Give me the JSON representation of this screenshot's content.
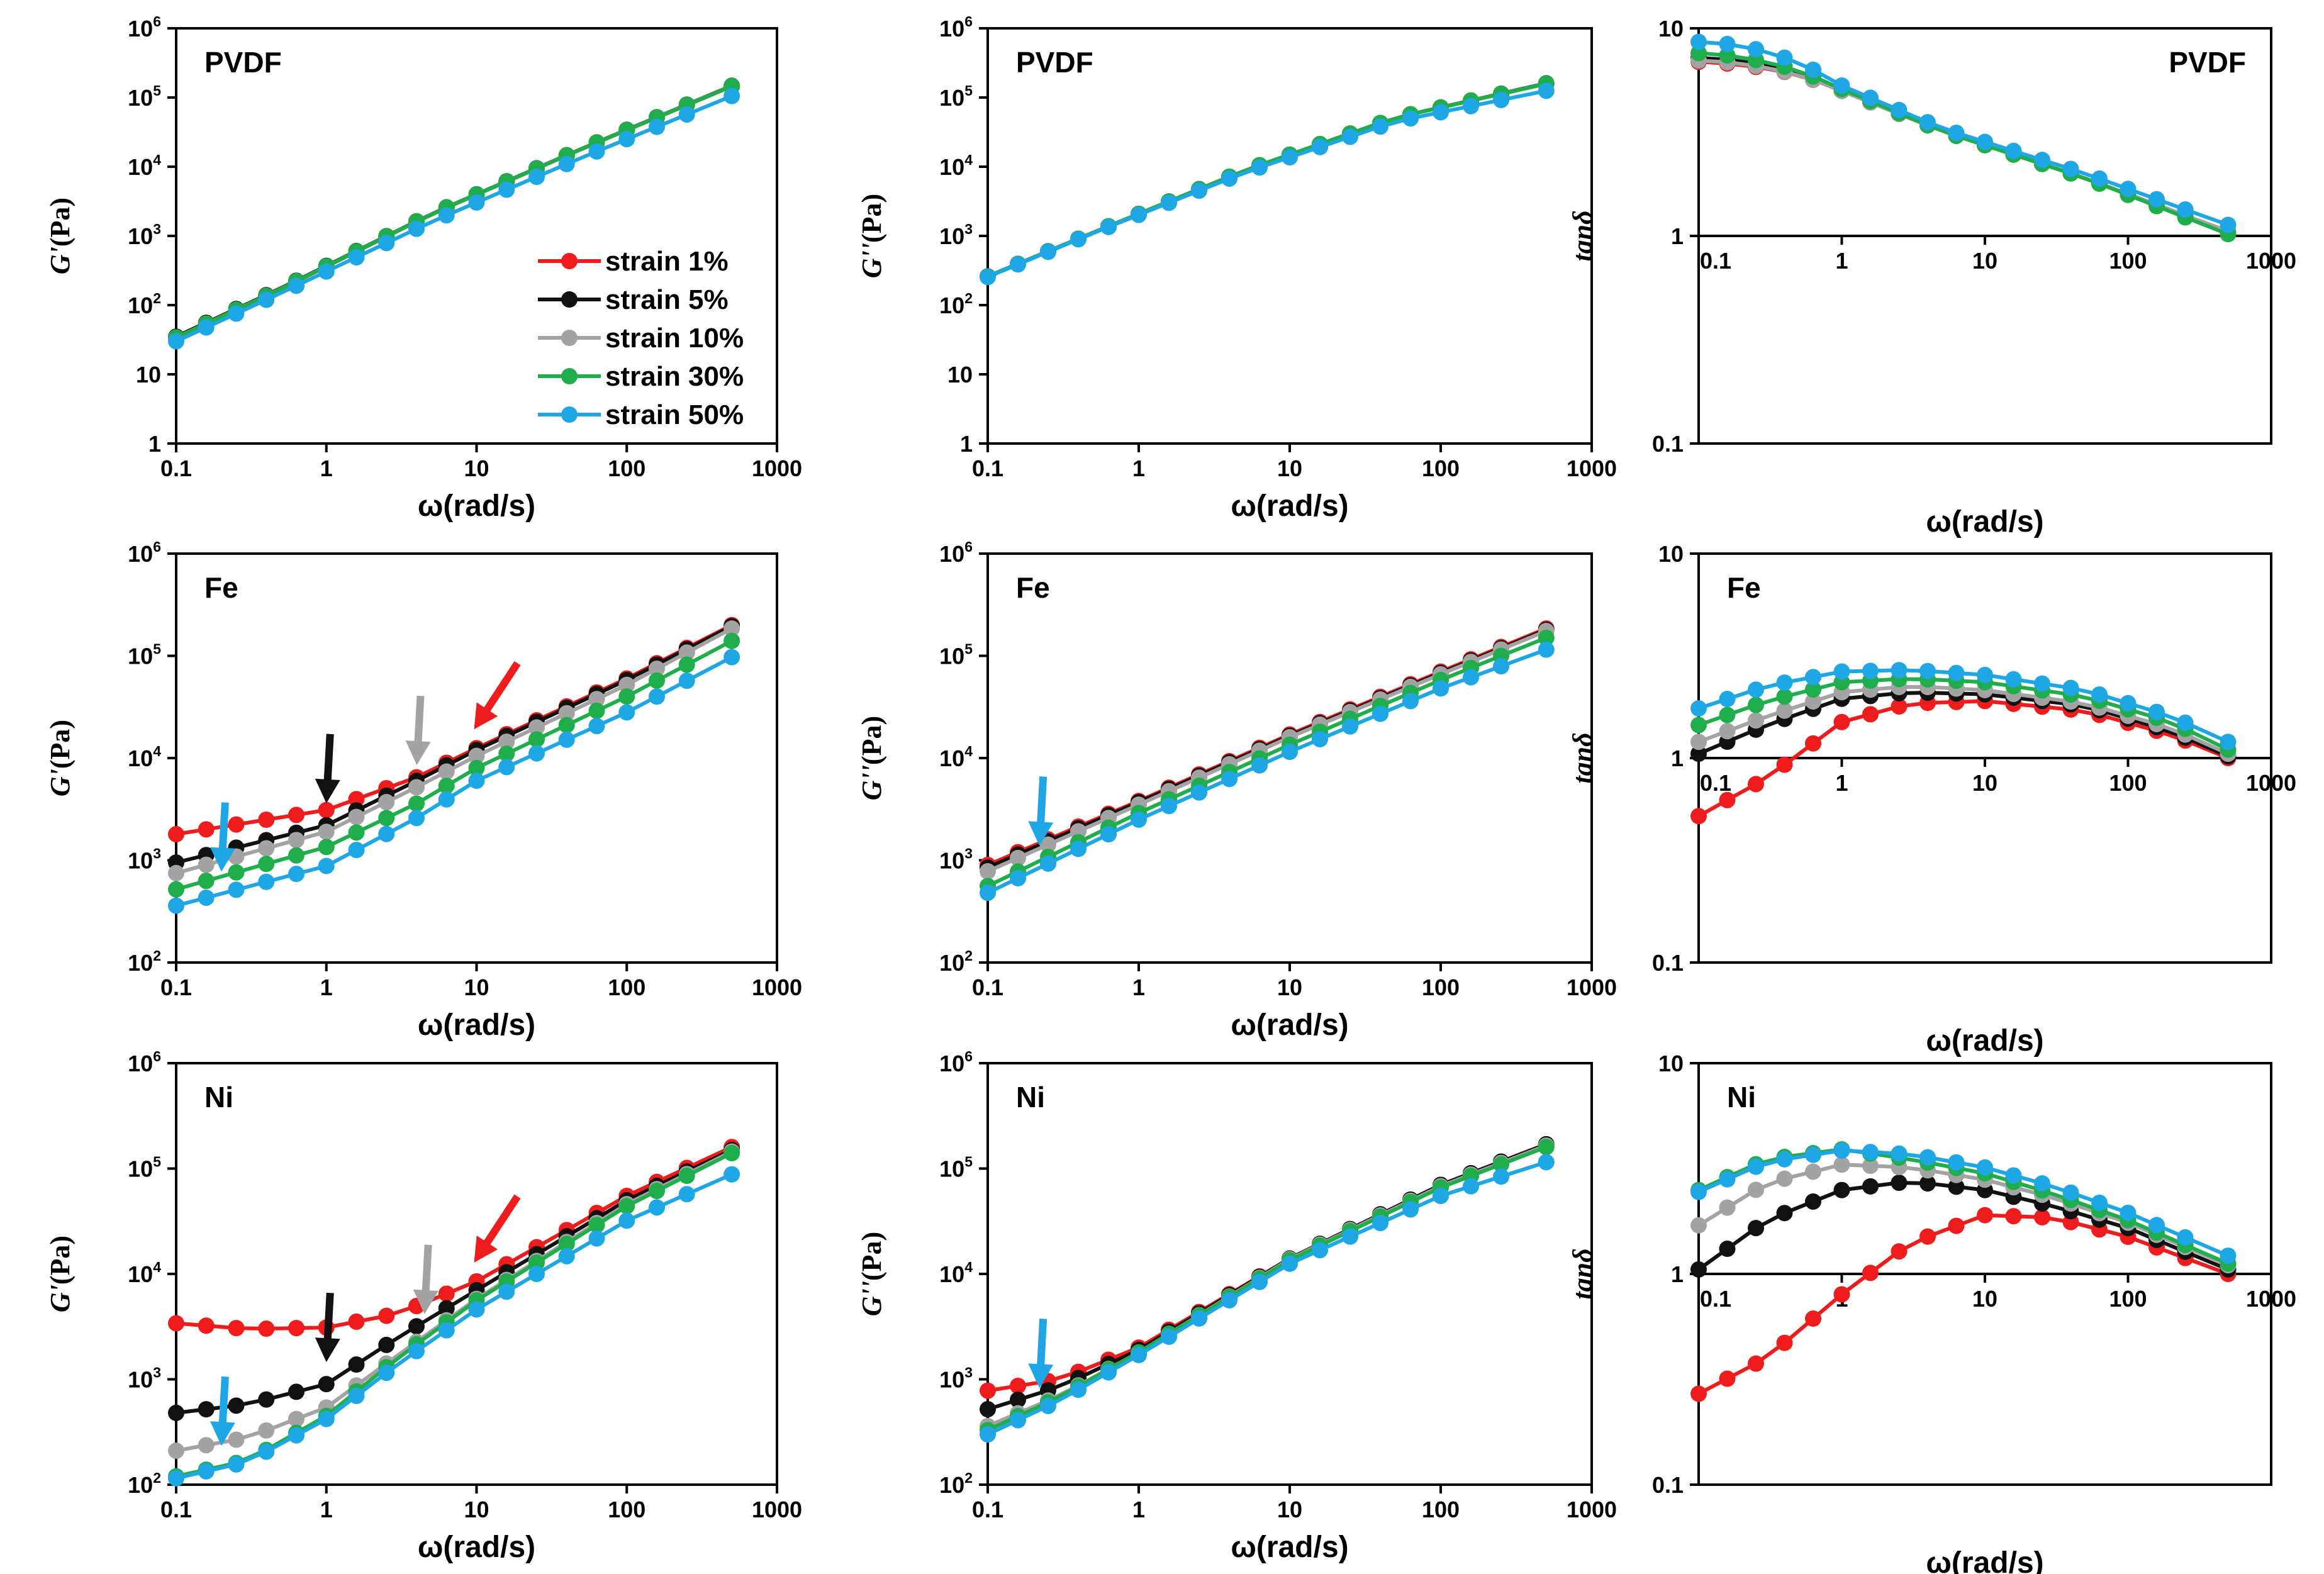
{
  "figure": {
    "series_colors": {
      "strain 1%": "#ee1c1c",
      "strain 5%": "#111111",
      "strain 10%": "#a3a3a3",
      "strain 30%": "#1fae4b",
      "strain 50%": "#1ea7e4"
    },
    "legend": [
      "strain 1%",
      "strain 5%",
      "strain 10%",
      "strain 30%",
      "strain 50%"
    ]
  },
  "chart_data": [
    {
      "id": "pvdf-gp",
      "type": "line",
      "title": "PVDF",
      "xlabel": "ω(rad/s)",
      "ylabel": {
        "main": "G'",
        "unit": "(Pa)"
      },
      "x_scale": "log",
      "y_scale": "log",
      "xlim": [
        0.1,
        1000
      ],
      "ylim": [
        1,
        1000000
      ],
      "xticks": [
        "0.1",
        "1",
        "10",
        "100",
        "1000"
      ],
      "yticks": [
        {
          "v": 1,
          "t": "1"
        },
        {
          "v": 10,
          "t": "10"
        },
        {
          "v": 100,
          "b": "10",
          "e": "2"
        },
        {
          "v": 1000,
          "b": "10",
          "e": "3"
        },
        {
          "v": 10000,
          "b": "10",
          "e": "4"
        },
        {
          "v": 100000,
          "b": "10",
          "e": "5"
        },
        {
          "v": 1000000,
          "b": "10",
          "e": "6"
        }
      ],
      "x": [
        0.1,
        0.5,
        5,
        50,
        500
      ],
      "series": [
        {
          "name": "strain 1%",
          "values": [
            33,
            170,
            2050,
            18000,
            145000
          ]
        },
        {
          "name": "strain 5%",
          "values": [
            35,
            175,
            2080,
            18200,
            148000
          ]
        },
        {
          "name": "strain 10%",
          "values": [
            34,
            172,
            2060,
            18100,
            147000
          ]
        },
        {
          "name": "strain 30%",
          "values": [
            34,
            172,
            2070,
            18100,
            146000
          ]
        },
        {
          "name": "strain 50%",
          "values": [
            30,
            150,
            1600,
            13500,
            105000
          ]
        }
      ]
    },
    {
      "id": "pvdf-gpp",
      "type": "line",
      "title": "PVDF",
      "xlabel": "ω(rad/s)",
      "ylabel": {
        "main": "G''",
        "unit": "(Pa)"
      },
      "x_scale": "log",
      "y_scale": "log",
      "xlim": [
        0.1,
        1000
      ],
      "ylim": [
        1,
        1000000
      ],
      "xticks": [
        "0.1",
        "1",
        "10",
        "100",
        "1000"
      ],
      "yticks": [
        {
          "v": 1,
          "t": "1"
        },
        {
          "v": 10,
          "t": "10"
        },
        {
          "v": 100,
          "b": "10",
          "e": "2"
        },
        {
          "v": 1000,
          "b": "10",
          "e": "3"
        },
        {
          "v": 10000,
          "b": "10",
          "e": "4"
        },
        {
          "v": 100000,
          "b": "10",
          "e": "5"
        },
        {
          "v": 1000000,
          "b": "10",
          "e": "6"
        }
      ],
      "x": [
        0.1,
        0.5,
        5,
        50,
        500
      ],
      "series": [
        {
          "name": "strain 1%",
          "values": [
            260,
            1120,
            8800,
            51000,
            158000
          ]
        },
        {
          "name": "strain 5%",
          "values": [
            260,
            1120,
            8800,
            51000,
            160000
          ]
        },
        {
          "name": "strain 10%",
          "values": [
            260,
            1120,
            8800,
            51000,
            158000
          ]
        },
        {
          "name": "strain 30%",
          "values": [
            260,
            1120,
            8800,
            51000,
            158000
          ]
        },
        {
          "name": "strain 50%",
          "values": [
            255,
            1100,
            8200,
            45000,
            125000
          ]
        }
      ]
    },
    {
      "id": "pvdf-tan",
      "type": "line",
      "title": "PVDF",
      "xlabel": "ω(rad/s)",
      "ylabel": {
        "main": "tanδ",
        "unit": ""
      },
      "x_scale": "log",
      "y_scale": "log",
      "xlim": [
        0.1,
        1000
      ],
      "ylim": [
        0.1,
        10
      ],
      "x_axis_at": 1,
      "xticks": [
        "0.1",
        "1",
        "10",
        "100",
        "1000"
      ],
      "yticks": [
        {
          "v": 0.1,
          "t": "0.1"
        },
        {
          "v": 1,
          "t": "1"
        },
        {
          "v": 10,
          "t": "10"
        }
      ],
      "x": [
        0.1,
        0.2,
        0.5,
        1,
        5,
        50,
        500
      ],
      "series": [
        {
          "name": "strain 1%",
          "values": [
            6.9,
            6.7,
            6.0,
            5.0,
            3.2,
            1.9,
            1.05
          ]
        },
        {
          "name": "strain 5%",
          "values": [
            7.2,
            7.0,
            6.1,
            5.0,
            3.2,
            1.9,
            1.05
          ]
        },
        {
          "name": "strain 10%",
          "values": [
            7.0,
            6.8,
            6.0,
            5.0,
            3.2,
            1.9,
            1.05
          ]
        },
        {
          "name": "strain 30%",
          "values": [
            7.6,
            7.3,
            6.3,
            5.1,
            3.2,
            1.9,
            1.02
          ]
        },
        {
          "name": "strain 50%",
          "values": [
            8.6,
            8.3,
            6.9,
            5.3,
            3.3,
            2.0,
            1.13
          ]
        }
      ]
    },
    {
      "id": "fe-gp",
      "type": "line",
      "title": "Fe",
      "xlabel": "ω(rad/s)",
      "ylabel": {
        "main": "G'",
        "unit": "(Pa)"
      },
      "x_scale": "log",
      "y_scale": "log",
      "xlim": [
        0.1,
        1000
      ],
      "ylim": [
        100,
        1000000
      ],
      "xticks": [
        "0.1",
        "1",
        "10",
        "100",
        "1000"
      ],
      "yticks": [
        {
          "v": 100,
          "b": "10",
          "e": "2"
        },
        {
          "v": 1000,
          "b": "10",
          "e": "3"
        },
        {
          "v": 10000,
          "b": "10",
          "e": "4"
        },
        {
          "v": 100000,
          "b": "10",
          "e": "5"
        },
        {
          "v": 1000000,
          "b": "10",
          "e": "6"
        }
      ],
      "x": [
        0.1,
        1,
        4,
        10,
        100,
        500
      ],
      "series": [
        {
          "name": "strain 1%",
          "values": [
            1800,
            3100,
            6500,
            12500,
            60000,
            200000
          ]
        },
        {
          "name": "strain 5%",
          "values": [
            950,
            2200,
            6000,
            12000,
            58000,
            195000
          ]
        },
        {
          "name": "strain 10%",
          "values": [
            750,
            1900,
            5200,
            10500,
            52000,
            185000
          ]
        },
        {
          "name": "strain 30%",
          "values": [
            520,
            1350,
            3600,
            8000,
            40000,
            140000
          ]
        },
        {
          "name": "strain 50%",
          "values": [
            360,
            880,
            2600,
            6000,
            28000,
            97000
          ]
        }
      ],
      "annotations": [
        {
          "type": "arrow",
          "color": "strain 50%",
          "x": 0.2
        },
        {
          "type": "arrow",
          "color": "strain 5%",
          "x": 1
        },
        {
          "type": "arrow",
          "color": "strain 10%",
          "x": 4
        },
        {
          "type": "arrow",
          "color": "strain 1%",
          "x": 10
        }
      ]
    },
    {
      "id": "fe-gpp",
      "type": "line",
      "title": "Fe",
      "xlabel": "ω(rad/s)",
      "ylabel": {
        "main": "G''",
        "unit": "(Pa)"
      },
      "x_scale": "log",
      "y_scale": "log",
      "xlim": [
        0.1,
        1000
      ],
      "ylim": [
        100,
        1000000
      ],
      "xticks": [
        "0.1",
        "1",
        "10",
        "100",
        "1000"
      ],
      "yticks": [
        {
          "v": 100,
          "b": "10",
          "e": "2"
        },
        {
          "v": 1000,
          "b": "10",
          "e": "3"
        },
        {
          "v": 10000,
          "b": "10",
          "e": "4"
        },
        {
          "v": 100000,
          "b": "10",
          "e": "5"
        },
        {
          "v": 1000000,
          "b": "10",
          "e": "6"
        }
      ],
      "x": [
        0.1,
        1,
        10,
        100,
        500
      ],
      "series": [
        {
          "name": "strain 1%",
          "values": [
            900,
            3800,
            17000,
            70000,
            185000
          ]
        },
        {
          "name": "strain 5%",
          "values": [
            850,
            3700,
            16500,
            68000,
            180000
          ]
        },
        {
          "name": "strain 10%",
          "values": [
            780,
            3500,
            16000,
            66000,
            175000
          ]
        },
        {
          "name": "strain 30%",
          "values": [
            560,
            2900,
            13500,
            58000,
            150000
          ]
        },
        {
          "name": "strain 50%",
          "values": [
            480,
            2500,
            11500,
            48000,
            115000
          ]
        }
      ],
      "annotations": [
        {
          "type": "arrow",
          "color": "strain 50%",
          "x": 0.22
        }
      ]
    },
    {
      "id": "fe-tan",
      "type": "line",
      "title": "Fe",
      "xlabel": "ω(rad/s)",
      "ylabel": {
        "main": "tanδ",
        "unit": ""
      },
      "x_scale": "log",
      "y_scale": "log",
      "xlim": [
        0.1,
        1000
      ],
      "ylim": [
        0.1,
        10
      ],
      "x_axis_at": 1,
      "xticks": [
        "0.1",
        "1",
        "10",
        "100",
        "1000"
      ],
      "yticks": [
        {
          "v": 0.1,
          "t": "0.1"
        },
        {
          "v": 1,
          "t": "1"
        },
        {
          "v": 10,
          "t": "10"
        }
      ],
      "x": [
        0.1,
        0.3,
        1,
        3,
        10,
        50,
        200,
        500
      ],
      "series": [
        {
          "name": "strain 1%",
          "values": [
            0.52,
            0.8,
            1.5,
            1.85,
            1.9,
            1.7,
            1.3,
            1.0
          ]
        },
        {
          "name": "strain 5%",
          "values": [
            1.05,
            1.45,
            1.95,
            2.1,
            2.05,
            1.8,
            1.35,
            1.02
          ]
        },
        {
          "name": "strain 10%",
          "values": [
            1.2,
            1.6,
            2.1,
            2.25,
            2.15,
            1.85,
            1.4,
            1.05
          ]
        },
        {
          "name": "strain 30%",
          "values": [
            1.45,
            1.9,
            2.35,
            2.45,
            2.35,
            2.0,
            1.5,
            1.1
          ]
        },
        {
          "name": "strain 50%",
          "values": [
            1.75,
            2.25,
            2.65,
            2.7,
            2.55,
            2.15,
            1.6,
            1.2
          ]
        }
      ]
    },
    {
      "id": "ni-gp",
      "type": "line",
      "title": "Ni",
      "xlabel": "ω(rad/s)",
      "ylabel": {
        "main": "G'",
        "unit": "(Pa)"
      },
      "x_scale": "log",
      "y_scale": "log",
      "xlim": [
        0.1,
        1000
      ],
      "ylim": [
        100,
        1000000
      ],
      "xticks": [
        "0.1",
        "1",
        "10",
        "100",
        "1000"
      ],
      "yticks": [
        {
          "v": 100,
          "b": "10",
          "e": "2"
        },
        {
          "v": 1000,
          "b": "10",
          "e": "3"
        },
        {
          "v": 10000,
          "b": "10",
          "e": "4"
        },
        {
          "v": 100000,
          "b": "10",
          "e": "5"
        },
        {
          "v": 1000000,
          "b": "10",
          "e": "6"
        }
      ],
      "x": [
        0.1,
        0.3,
        1,
        3,
        10,
        100,
        500
      ],
      "series": [
        {
          "name": "strain 1%",
          "values": [
            3400,
            3000,
            3100,
            4200,
            8500,
            55000,
            160000
          ]
        },
        {
          "name": "strain 5%",
          "values": [
            480,
            580,
            900,
            2500,
            7000,
            50000,
            150000
          ]
        },
        {
          "name": "strain 10%",
          "values": [
            210,
            280,
            540,
            1700,
            5800,
            46000,
            145000
          ]
        },
        {
          "name": "strain 30%",
          "values": [
            120,
            170,
            450,
            1600,
            5600,
            44000,
            140000
          ]
        },
        {
          "name": "strain 50%",
          "values": [
            115,
            165,
            420,
            1400,
            4600,
            32000,
            88000
          ]
        }
      ],
      "annotations": [
        {
          "type": "arrow",
          "color": "strain 50%",
          "x": 0.2
        },
        {
          "type": "arrow",
          "color": "strain 5%",
          "x": 1
        },
        {
          "type": "arrow",
          "color": "strain 10%",
          "x": 4.5
        },
        {
          "type": "arrow",
          "color": "strain 1%",
          "x": 10
        }
      ]
    },
    {
      "id": "ni-gpp",
      "type": "line",
      "title": "Ni",
      "xlabel": "ω(rad/s)",
      "ylabel": {
        "main": "G''",
        "unit": "(Pa)"
      },
      "x_scale": "log",
      "y_scale": "log",
      "xlim": [
        0.1,
        1000
      ],
      "ylim": [
        100,
        1000000
      ],
      "xticks": [
        "0.1",
        "1",
        "10",
        "100",
        "1000"
      ],
      "yticks": [
        {
          "v": 100,
          "b": "10",
          "e": "2"
        },
        {
          "v": 1000,
          "b": "10",
          "e": "3"
        },
        {
          "v": 10000,
          "b": "10",
          "e": "4"
        },
        {
          "v": 100000,
          "b": "10",
          "e": "5"
        },
        {
          "v": 1000000,
          "b": "10",
          "e": "6"
        }
      ],
      "x": [
        0.1,
        0.3,
        1,
        10,
        100,
        500
      ],
      "series": [
        {
          "name": "strain 1%",
          "values": [
            780,
            1000,
            2000,
            14000,
            70000,
            170000
          ]
        },
        {
          "name": "strain 5%",
          "values": [
            520,
            850,
            1900,
            14000,
            70000,
            170000
          ]
        },
        {
          "name": "strain 10%",
          "values": [
            360,
            700,
            1800,
            13800,
            68000,
            165000
          ]
        },
        {
          "name": "strain 30%",
          "values": [
            330,
            680,
            1800,
            13500,
            66000,
            160000
          ]
        },
        {
          "name": "strain 50%",
          "values": [
            300,
            630,
            1700,
            12500,
            55000,
            115000
          ]
        }
      ],
      "annotations": [
        {
          "type": "arrow",
          "color": "strain 50%",
          "x": 0.22
        }
      ]
    },
    {
      "id": "ni-tan",
      "type": "line",
      "title": "Ni",
      "xlabel": "ω(rad/s)",
      "ylabel": {
        "main": "tanδ",
        "unit": ""
      },
      "x_scale": "log",
      "y_scale": "log",
      "xlim": [
        0.1,
        1000
      ],
      "ylim": [
        0.1,
        10
      ],
      "x_axis_at": 1,
      "xticks": [
        "0.1",
        "1",
        "10",
        "100",
        "1000"
      ],
      "yticks": [
        {
          "v": 0.1,
          "t": "0.1"
        },
        {
          "v": 1,
          "t": "1"
        },
        {
          "v": 10,
          "t": "10"
        }
      ],
      "x": [
        0.1,
        0.3,
        1,
        3,
        10,
        30,
        100,
        500
      ],
      "series": [
        {
          "name": "strain 1%",
          "values": [
            0.27,
            0.4,
            0.8,
            1.4,
            1.9,
            1.85,
            1.5,
            1.0
          ]
        },
        {
          "name": "strain 5%",
          "values": [
            1.05,
            1.8,
            2.5,
            2.75,
            2.5,
            2.1,
            1.65,
            1.05
          ]
        },
        {
          "name": "strain 10%",
          "values": [
            1.7,
            2.7,
            3.3,
            3.2,
            2.8,
            2.3,
            1.75,
            1.1
          ]
        },
        {
          "name": "strain 30%",
          "values": [
            2.5,
            3.5,
            3.9,
            3.5,
            3.0,
            2.4,
            1.8,
            1.12
          ]
        },
        {
          "name": "strain 50%",
          "values": [
            2.45,
            3.4,
            3.85,
            3.7,
            3.2,
            2.6,
            1.95,
            1.22
          ]
        }
      ]
    }
  ]
}
